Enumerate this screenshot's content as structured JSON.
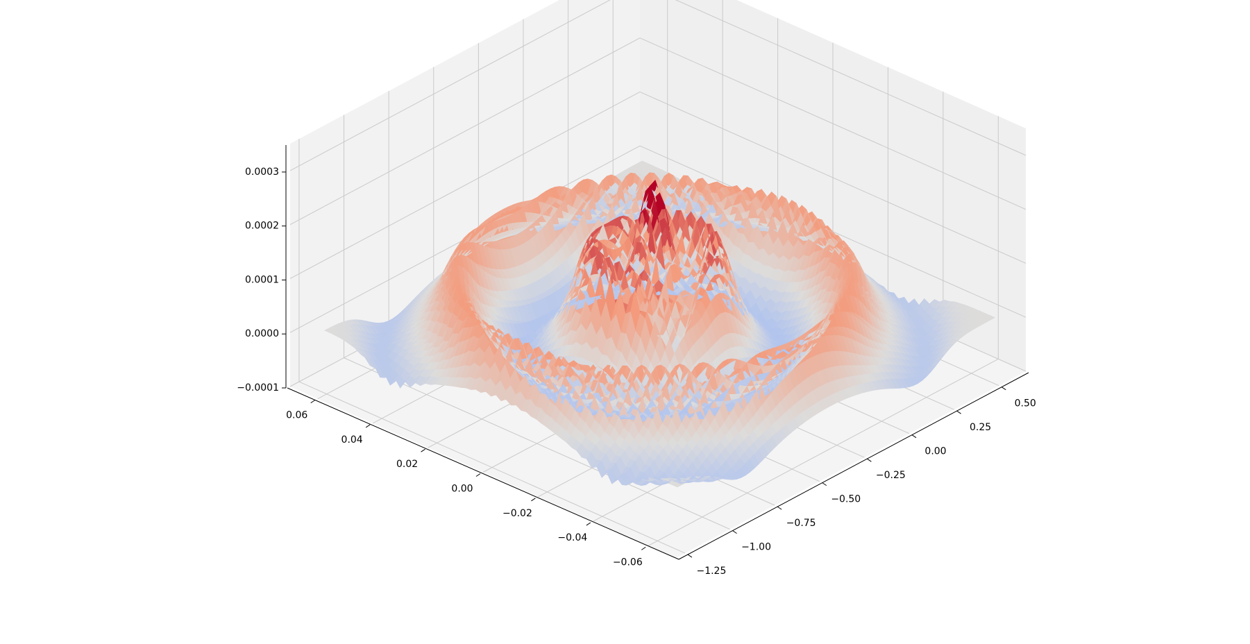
{
  "chart_data": {
    "type": "surface3d",
    "colormap": "coolwarm",
    "colors": {
      "low": "#3b4cc0",
      "mid": "#dddcdb",
      "high": "#b40426",
      "pane": "#f2f2f2",
      "grid": "#c9c9c9",
      "axis": "#000000"
    },
    "grid": true,
    "x_axis": {
      "lim": [
        -0.07,
        0.07
      ],
      "ticks": [
        0.06,
        0.04,
        0.02,
        0.0,
        -0.02,
        -0.04,
        -0.06
      ],
      "tick_labels": [
        "0.06",
        "0.04",
        "0.02",
        "0.00",
        "−0.02",
        "−0.04",
        "−0.06"
      ]
    },
    "y_axis": {
      "lim": [
        -1.3,
        0.65
      ],
      "ticks": [
        0.5,
        0.25,
        0.0,
        -0.25,
        -0.5,
        -0.75,
        -1.0,
        -1.25
      ],
      "tick_labels": [
        "0.50",
        "0.25",
        "0.00",
        "−0.25",
        "−0.50",
        "−0.75",
        "−1.00",
        "−1.25"
      ]
    },
    "z_axis": {
      "lim": [
        -0.0001,
        0.00035
      ],
      "ticks": [
        0.0003,
        0.0002,
        0.0001,
        0.0,
        -0.0001
      ],
      "tick_labels": [
        "0.0003",
        "0.0002",
        "0.0001",
        "0.0000",
        "−0.0001"
      ]
    },
    "surface": {
      "description_free": true,
      "baseline_z": 0.0,
      "center_x": 0.0,
      "center_y": -0.35,
      "rings": [
        {
          "radius_frac": 0.12,
          "amplitude": 0.00014
        },
        {
          "radius_frac": 0.25,
          "amplitude": -5e-05
        },
        {
          "radius_frac": 0.38,
          "amplitude": 9e-05
        },
        {
          "radius_frac": 0.52,
          "amplitude": -4e-05
        }
      ],
      "peak_z": 0.00033,
      "trough_z": -0.00011
    }
  }
}
